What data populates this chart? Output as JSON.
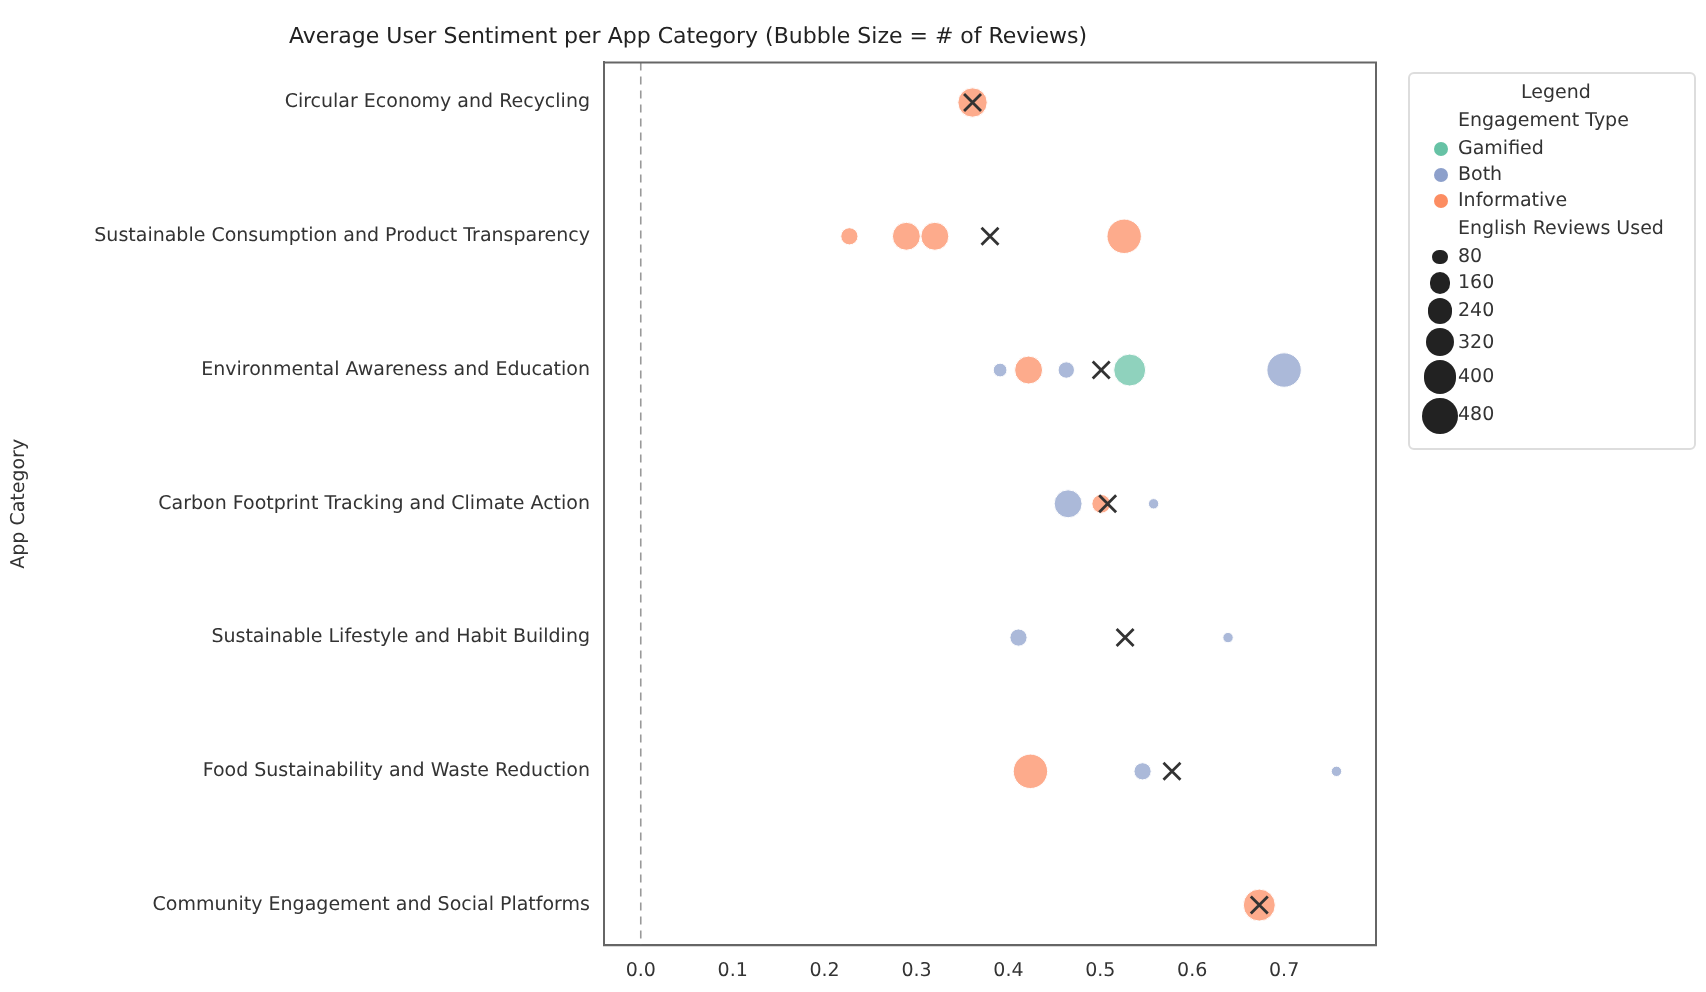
{
  "chart_data": {
    "type": "bubble",
    "title": "Average User Sentiment per App Category (Bubble Size = # of Reviews)",
    "ylabel": "App Category",
    "orientation": "horizontal",
    "categories": [
      "Circular Economy and Recycling",
      "Sustainable Consumption and Product Transparency",
      "Environmental Awareness and Education",
      "Carbon Footprint Tracking and Climate Action",
      "Sustainable Lifestyle and Habit Building",
      "Food Sustainability and Waste Reduction",
      "Community Engagement and Social Platforms"
    ],
    "xlim": [
      -0.04,
      0.8
    ],
    "xticks": [
      {
        "value": 0,
        "label": "0.0"
      },
      0.1,
      0.2,
      0.3,
      0.4,
      0.5,
      0.6,
      0.7
    ],
    "grid": false,
    "legend": "top right",
    "legend_title": "Legend",
    "size_legend": [
      80,
      160,
      240,
      320,
      400,
      480
    ],
    "annotations": [
      "Engagement Type",
      "English Reviews Used"
    ],
    "ref_lines": [
      {
        "axis": "x",
        "value": 0,
        "label": null,
        "color": "#999999",
        "line_style": "dashed"
      }
    ],
    "series": [
      {
        "name": "Gamified",
        "color": "#66c2a5",
        "x": [
          "Environmental Awareness and Education"
        ],
        "values": [
          0.532
        ],
        "sizes": [
          380
        ]
      },
      {
        "name": "Both",
        "color": "#8da0cb",
        "x": [
          "Environmental Awareness and Education",
          "Environmental Awareness and Education",
          "Environmental Awareness and Education",
          "Carbon Footprint Tracking and Climate Action",
          "Carbon Footprint Tracking and Climate Action",
          "Sustainable Lifestyle and Habit Building",
          "Sustainable Lifestyle and Habit Building",
          "Food Sustainability and Waste Reduction",
          "Food Sustainability and Waste Reduction"
        ],
        "values": [
          0.391,
          0.463,
          0.7,
          0.465,
          0.558,
          0.411,
          0.639,
          0.546,
          0.757
        ],
        "sizes": [
          70,
          100,
          440,
          290,
          40,
          110,
          40,
          110,
          40
        ]
      },
      {
        "name": "Informative",
        "color": "#fc8d62",
        "x": [
          "Circular Economy and Recycling",
          "Sustainable Consumption and Product Transparency",
          "Sustainable Consumption and Product Transparency",
          "Sustainable Consumption and Product Transparency",
          "Sustainable Consumption and Product Transparency",
          "Environmental Awareness and Education",
          "Carbon Footprint Tracking and Climate Action",
          "Food Sustainability and Waste Reduction",
          "Community Engagement and Social Platforms"
        ],
        "values": [
          0.361,
          0.227,
          0.289,
          0.32,
          0.526,
          0.422,
          0.501,
          0.424,
          0.673
        ],
        "sizes": [
          320,
          110,
          290,
          290,
          440,
          290,
          130,
          440,
          380
        ]
      },
      {
        "type": "scatter",
        "color": "#333333",
        "marker": "cross",
        "x": [
          "Circular Economy and Recycling",
          "Sustainable Consumption and Product Transparency",
          "Environmental Awareness and Education",
          "Carbon Footprint Tracking and Climate Action",
          "Sustainable Lifestyle and Habit Building",
          "Food Sustainability and Waste Reduction",
          "Community Engagement and Social Platforms"
        ],
        "values": [
          0.361,
          0.38,
          0.501,
          0.508,
          0.527,
          0.578,
          0.673
        ]
      }
    ]
  }
}
